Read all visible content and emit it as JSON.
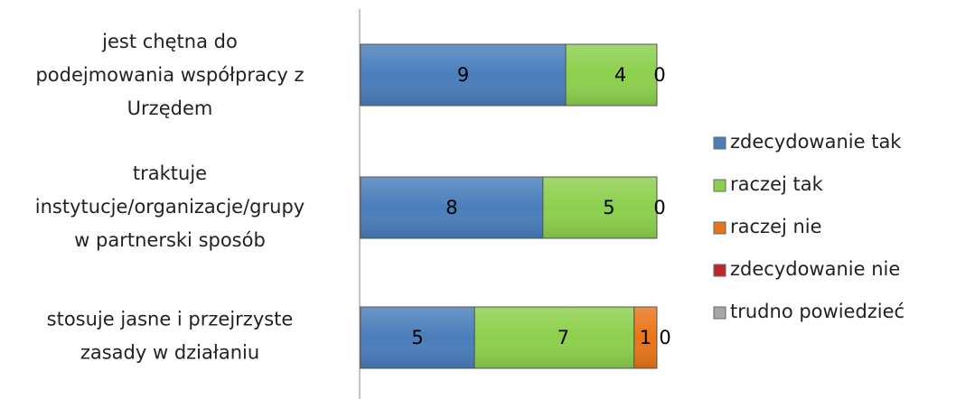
{
  "chart_data": {
    "type": "bar",
    "orientation": "horizontal",
    "stacked": true,
    "categories": [
      [
        "jest chętna do",
        "podejmowania współpracy z",
        "Urzędem"
      ],
      [
        "traktuje",
        "instytucje/organizacje/grupy",
        "w partnerski sposób"
      ],
      [
        "stosuje jasne i przejrzyste",
        "zasady w działaniu"
      ]
    ],
    "series": [
      {
        "name": "zdecydowanie tak",
        "color": "#4a7ebb",
        "values": [
          9,
          8,
          5
        ],
        "labels": [
          "9",
          "8",
          "5"
        ]
      },
      {
        "name": "raczej tak",
        "color": "#8ccf4d",
        "values": [
          4,
          5,
          7
        ],
        "labels": [
          "4",
          "5",
          "7"
        ]
      },
      {
        "name": "raczej nie",
        "color": "#e8751a",
        "values": [
          0,
          0,
          1
        ],
        "labels": [
          "0",
          "0",
          "1"
        ]
      },
      {
        "name": "zdecydowanie nie",
        "color": "#c0262d",
        "values": [
          0,
          0,
          0
        ],
        "labels": [
          "",
          "",
          "0"
        ]
      },
      {
        "name": "trudno powiedzieć",
        "color": "#a6a6a6",
        "values": [
          0,
          0,
          0
        ],
        "labels": [
          "",
          "",
          ""
        ]
      }
    ],
    "xlim": [
      0,
      13
    ],
    "grid": false,
    "legend_position": "right"
  }
}
